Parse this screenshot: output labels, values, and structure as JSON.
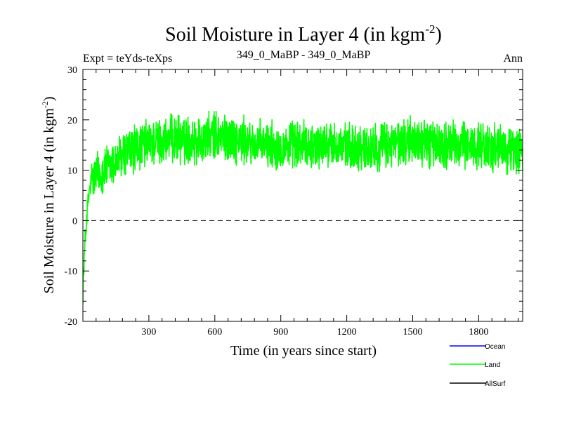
{
  "chart_data": {
    "type": "line",
    "title": "Soil Moisture in Layer 4 (in kgm",
    "title_sup": "-2",
    "title_close": ")",
    "subtitle_left": "Expt = teYds-teXps",
    "subtitle_center": "349_0_MaBP - 349_0_MaBP",
    "subtitle_right": "Ann",
    "xlabel": "Time (in years since start)",
    "ylabel": "Soil Moisture in Layer 4 (in kgm",
    "ylabel_sup": "-2",
    "ylabel_close": ")",
    "xlim": [
      0,
      2000
    ],
    "ylim": [
      -20,
      30
    ],
    "xticks": [
      300,
      600,
      900,
      1200,
      1500,
      1800
    ],
    "yticks": [
      -20,
      -10,
      0,
      10,
      20,
      30
    ],
    "zero_line": 0,
    "legend": [
      {
        "name": "Ocean",
        "color": "#0000ff"
      },
      {
        "name": "Land",
        "color": "#00ff00"
      },
      {
        "name": "AllSurf",
        "color": "#000000"
      }
    ],
    "series": [
      {
        "name": "Land",
        "color": "#00ff00",
        "x": [
          0,
          5,
          10,
          20,
          30,
          40,
          50,
          60,
          80,
          100,
          130,
          160,
          200,
          250,
          300,
          350,
          400,
          450,
          500,
          550,
          600,
          650,
          700,
          750,
          800,
          850,
          900,
          950,
          1000,
          1050,
          1100,
          1150,
          1200,
          1250,
          1300,
          1350,
          1400,
          1450,
          1500,
          1550,
          1600,
          1650,
          1700,
          1750,
          1800,
          1850,
          1900,
          1950,
          2000
        ],
        "y": [
          -14,
          -9,
          -4,
          2,
          6,
          8,
          8.5,
          9,
          9.5,
          10,
          11,
          12,
          13.5,
          14.5,
          15.5,
          15.5,
          16,
          16,
          16,
          16,
          17,
          16.5,
          16,
          15.5,
          15,
          15,
          14.5,
          15,
          15,
          15,
          15,
          15,
          14.5,
          14.5,
          14.5,
          14.5,
          15,
          15.5,
          16,
          15.5,
          15,
          15,
          15,
          15,
          15,
          14.5,
          14,
          14,
          14
        ],
        "noise_amplitude": 4
      }
    ]
  }
}
